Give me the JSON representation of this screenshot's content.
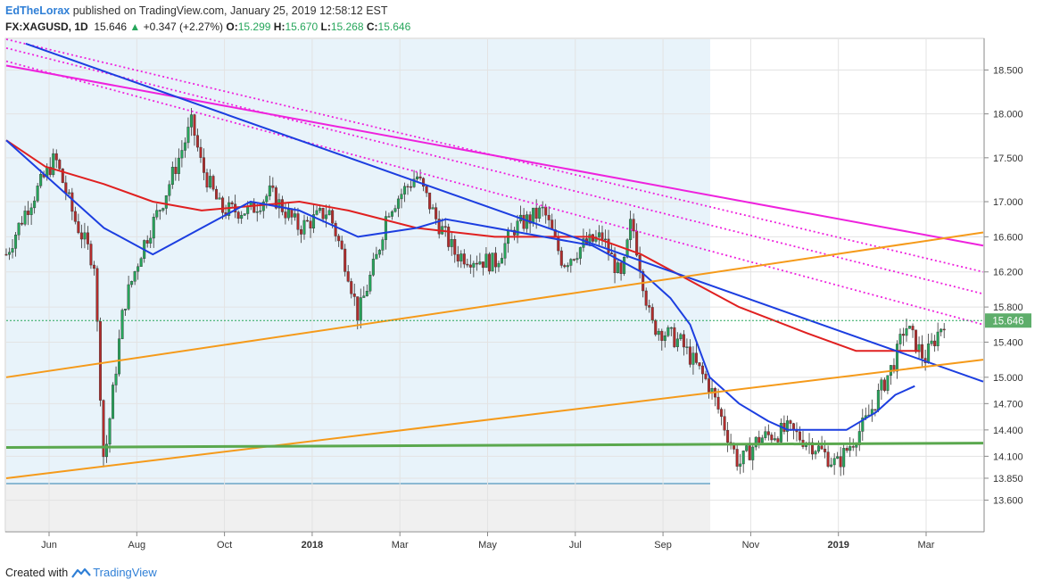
{
  "header": {
    "author": "EdTheLorax",
    "published": "published on TradingView.com, January 25, 2019 12:58:12 EST"
  },
  "ohlc": {
    "symbol": "FX:XAGUSD, 1D",
    "price": "15.646",
    "arrow": "▲",
    "change": "+0.347 (+2.27%)",
    "o_label": "O:",
    "o": "15.299",
    "h_label": "H:",
    "h": "15.670",
    "l_label": "L:",
    "l": "15.268",
    "c_label": "C:",
    "c": "15.646"
  },
  "footer": {
    "created": "Created with",
    "brand": "TradingView"
  },
  "colors": {
    "up": "#26a65b",
    "down": "#b22c2c",
    "ma_red": "#e02020",
    "ma_blue": "#1c3ee0",
    "trend_magenta": "#ee22dd",
    "trend_orange": "#f59a1a",
    "trend_green": "#5aa84e",
    "shade": "#e8f3fa",
    "shade_gray": "#f0f0f0",
    "price_label_bg": "#5eae6b"
  },
  "chart_data": {
    "type": "candlestick",
    "y_axis": {
      "min": 13.25,
      "max": 18.85,
      "ticks": [
        "18.500",
        "18.000",
        "17.500",
        "17.000",
        "16.600",
        "16.200",
        "15.800",
        "15.400",
        "15.000",
        "14.700",
        "14.400",
        "14.100",
        "13.850",
        "13.600"
      ]
    },
    "x_axis": {
      "ticks": [
        {
          "label": "Jun",
          "bold": false
        },
        {
          "label": "Aug",
          "bold": false
        },
        {
          "label": "Oct",
          "bold": false
        },
        {
          "label": "2018",
          "bold": true
        },
        {
          "label": "Mar",
          "bold": false
        },
        {
          "label": "May",
          "bold": false
        },
        {
          "label": "Jul",
          "bold": false
        },
        {
          "label": "Sep",
          "bold": false
        },
        {
          "label": "Nov",
          "bold": false
        },
        {
          "label": "2019",
          "bold": true
        },
        {
          "label": "Mar",
          "bold": false
        }
      ]
    },
    "last_price": "15.646",
    "price_path": [
      [
        0,
        16.4
      ],
      [
        0.02,
        16.9
      ],
      [
        0.05,
        17.5
      ],
      [
        0.07,
        16.8
      ],
      [
        0.09,
        16.3
      ],
      [
        0.1,
        14.0
      ],
      [
        0.12,
        15.8
      ],
      [
        0.14,
        16.5
      ],
      [
        0.16,
        17.0
      ],
      [
        0.19,
        17.9
      ],
      [
        0.2,
        17.4
      ],
      [
        0.22,
        16.9
      ],
      [
        0.25,
        16.9
      ],
      [
        0.27,
        17.1
      ],
      [
        0.3,
        16.7
      ],
      [
        0.33,
        16.9
      ],
      [
        0.35,
        16.2
      ],
      [
        0.36,
        15.7
      ],
      [
        0.38,
        16.4
      ],
      [
        0.39,
        16.9
      ],
      [
        0.42,
        17.3
      ],
      [
        0.44,
        16.8
      ],
      [
        0.46,
        16.4
      ],
      [
        0.5,
        16.3
      ],
      [
        0.52,
        16.7
      ],
      [
        0.55,
        16.9
      ],
      [
        0.57,
        16.3
      ],
      [
        0.59,
        16.5
      ],
      [
        0.61,
        16.6
      ],
      [
        0.63,
        16.1
      ],
      [
        0.64,
        16.8
      ],
      [
        0.66,
        15.6
      ],
      [
        0.69,
        15.4
      ],
      [
        0.72,
        14.9
      ],
      [
        0.75,
        14.0
      ],
      [
        0.77,
        14.3
      ],
      [
        0.8,
        14.4
      ],
      [
        0.83,
        14.2
      ],
      [
        0.85,
        14.0
      ],
      [
        0.88,
        14.5
      ],
      [
        0.91,
        15.2
      ],
      [
        0.92,
        15.6
      ],
      [
        0.94,
        15.2
      ],
      [
        0.96,
        15.65
      ]
    ],
    "moving_averages": [
      {
        "color": "red",
        "points": [
          [
            0,
            17.7
          ],
          [
            0.04,
            17.4
          ],
          [
            0.1,
            17.2
          ],
          [
            0.15,
            17.0
          ],
          [
            0.2,
            16.9
          ],
          [
            0.3,
            17.0
          ],
          [
            0.35,
            16.9
          ],
          [
            0.42,
            16.7
          ],
          [
            0.5,
            16.6
          ],
          [
            0.6,
            16.6
          ],
          [
            0.65,
            16.4
          ],
          [
            0.7,
            16.1
          ],
          [
            0.75,
            15.8
          ],
          [
            0.82,
            15.5
          ],
          [
            0.87,
            15.3
          ],
          [
            0.9,
            15.3
          ],
          [
            0.935,
            15.3
          ]
        ]
      },
      {
        "color": "blue",
        "points": [
          [
            0,
            17.7
          ],
          [
            0.04,
            17.3
          ],
          [
            0.1,
            16.7
          ],
          [
            0.15,
            16.4
          ],
          [
            0.2,
            16.7
          ],
          [
            0.25,
            17.0
          ],
          [
            0.3,
            16.9
          ],
          [
            0.34,
            16.7
          ],
          [
            0.36,
            16.6
          ],
          [
            0.42,
            16.7
          ],
          [
            0.45,
            16.8
          ],
          [
            0.5,
            16.7
          ],
          [
            0.55,
            16.6
          ],
          [
            0.6,
            16.5
          ],
          [
            0.65,
            16.2
          ],
          [
            0.68,
            15.9
          ],
          [
            0.7,
            15.6
          ],
          [
            0.72,
            15.0
          ],
          [
            0.75,
            14.7
          ],
          [
            0.78,
            14.5
          ],
          [
            0.8,
            14.4
          ],
          [
            0.83,
            14.4
          ],
          [
            0.86,
            14.4
          ],
          [
            0.89,
            14.6
          ],
          [
            0.91,
            14.8
          ],
          [
            0.93,
            14.9
          ]
        ]
      }
    ],
    "trendlines": [
      {
        "color": "magenta",
        "style": "solid",
        "from": [
          0.0,
          18.55
        ],
        "to": [
          1.0,
          16.5
        ]
      },
      {
        "color": "magenta",
        "style": "dotted",
        "from": [
          0.0,
          18.85
        ],
        "to": [
          1.0,
          16.2
        ]
      },
      {
        "color": "magenta",
        "style": "dotted",
        "from": [
          0.0,
          18.75
        ],
        "to": [
          1.0,
          15.95
        ]
      },
      {
        "color": "magenta",
        "style": "dotted",
        "from": [
          0.0,
          18.6
        ],
        "to": [
          1.0,
          15.6
        ]
      },
      {
        "color": "blue",
        "style": "solid",
        "from": [
          0.02,
          18.8
        ],
        "to": [
          1.0,
          14.95
        ]
      },
      {
        "color": "orange",
        "style": "solid",
        "from": [
          0.0,
          15.0
        ],
        "to": [
          1.0,
          16.65
        ]
      },
      {
        "color": "orange",
        "style": "solid",
        "from": [
          0.0,
          13.85
        ],
        "to": [
          1.0,
          15.2
        ]
      },
      {
        "color": "green",
        "style": "solid",
        "from": [
          0.0,
          14.2
        ],
        "to": [
          1.0,
          14.25
        ]
      }
    ]
  }
}
